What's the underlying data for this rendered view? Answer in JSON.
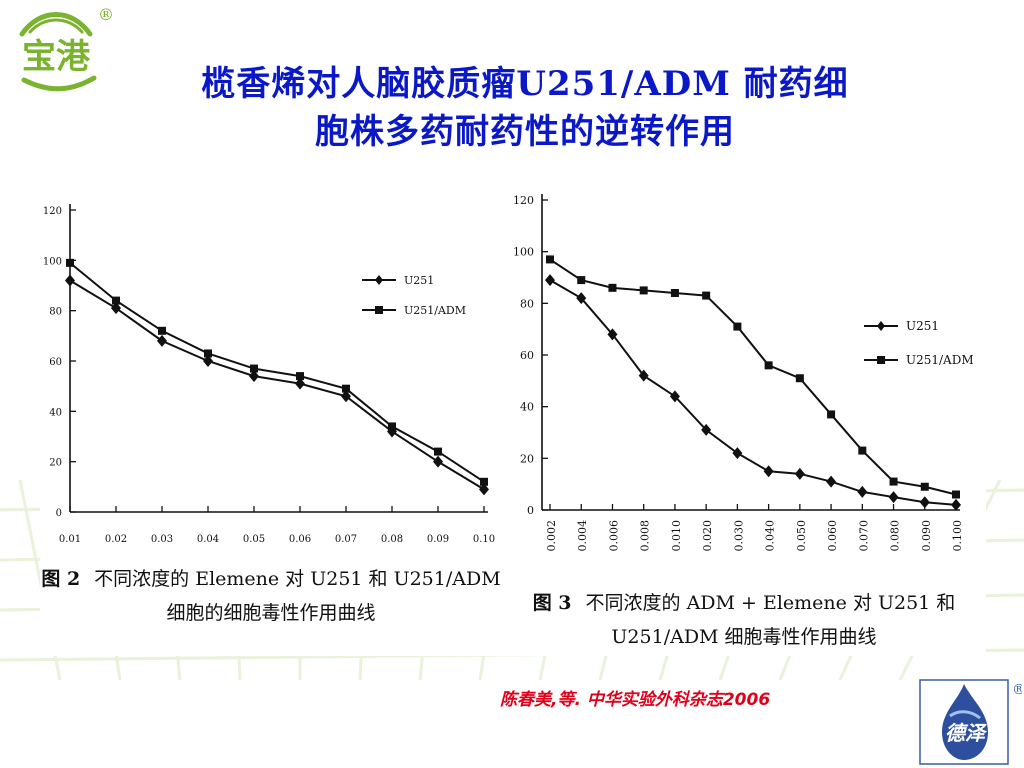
{
  "title": {
    "line1": "榄香烯对人脑胶质瘤U251/ADM 耐药细",
    "line2": "胞株多药耐药性的逆转作用"
  },
  "logos": {
    "top_left": {
      "text": "宝港",
      "icon": "leaf-logo",
      "mark": "®"
    },
    "bottom_right": {
      "text": "德泽",
      "icon": "water-drop-logo",
      "mark": "®"
    }
  },
  "citation": "陈春美,等. 中华实验外科杂志2006",
  "colors": {
    "title": "#0a18c8",
    "citation": "#e0001b",
    "logo_green": "#7ab32e",
    "grid_bg": "#cfe3b0"
  },
  "chart_data": [
    {
      "type": "line",
      "caption_label": "图 2",
      "caption_line1": "不同浓度的 Elemene 对 U251 和 U251/ADM",
      "caption_line2": "细胞的细胞毒性作用曲线",
      "categories": [
        "0.01",
        "0.02",
        "0.03",
        "0.04",
        "0.05",
        "0.06",
        "0.07",
        "0.08",
        "0.09",
        "0.10"
      ],
      "yticks": [
        "0",
        "20",
        "40",
        "60",
        "80",
        "100",
        "120"
      ],
      "ylim": [
        0,
        120
      ],
      "legend_position": "upper-right",
      "series": [
        {
          "name": "U251",
          "marker": "diamond",
          "values": [
            92,
            81,
            68,
            60,
            54,
            51,
            46,
            32,
            20,
            9
          ]
        },
        {
          "name": "U251/ADM",
          "marker": "square",
          "values": [
            99,
            84,
            72,
            63,
            57,
            54,
            49,
            34,
            24,
            12
          ]
        }
      ]
    },
    {
      "type": "line",
      "caption_label": "图 3",
      "caption_line1": "不同浓度的 ADM + Elemene 对 U251 和",
      "caption_line2": "U251/ADM 细胞毒性作用曲线",
      "categories": [
        "0.002",
        "0.004",
        "0.006",
        "0.008",
        "0.010",
        "0.020",
        "0.030",
        "0.040",
        "0.050",
        "0.060",
        "0.070",
        "0.080",
        "0.090",
        "0.100"
      ],
      "yticks": [
        "0",
        "20",
        "40",
        "60",
        "80",
        "100",
        "120"
      ],
      "ylim": [
        0,
        120
      ],
      "legend_position": "right",
      "series": [
        {
          "name": "U251",
          "marker": "diamond",
          "values": [
            89,
            82,
            68,
            52,
            44,
            31,
            22,
            15,
            14,
            11,
            7,
            5,
            3,
            2
          ]
        },
        {
          "name": "U251/ADM",
          "marker": "square",
          "values": [
            97,
            89,
            86,
            85,
            84,
            83,
            71,
            56,
            51,
            37,
            23,
            11,
            9,
            6
          ]
        }
      ]
    }
  ]
}
